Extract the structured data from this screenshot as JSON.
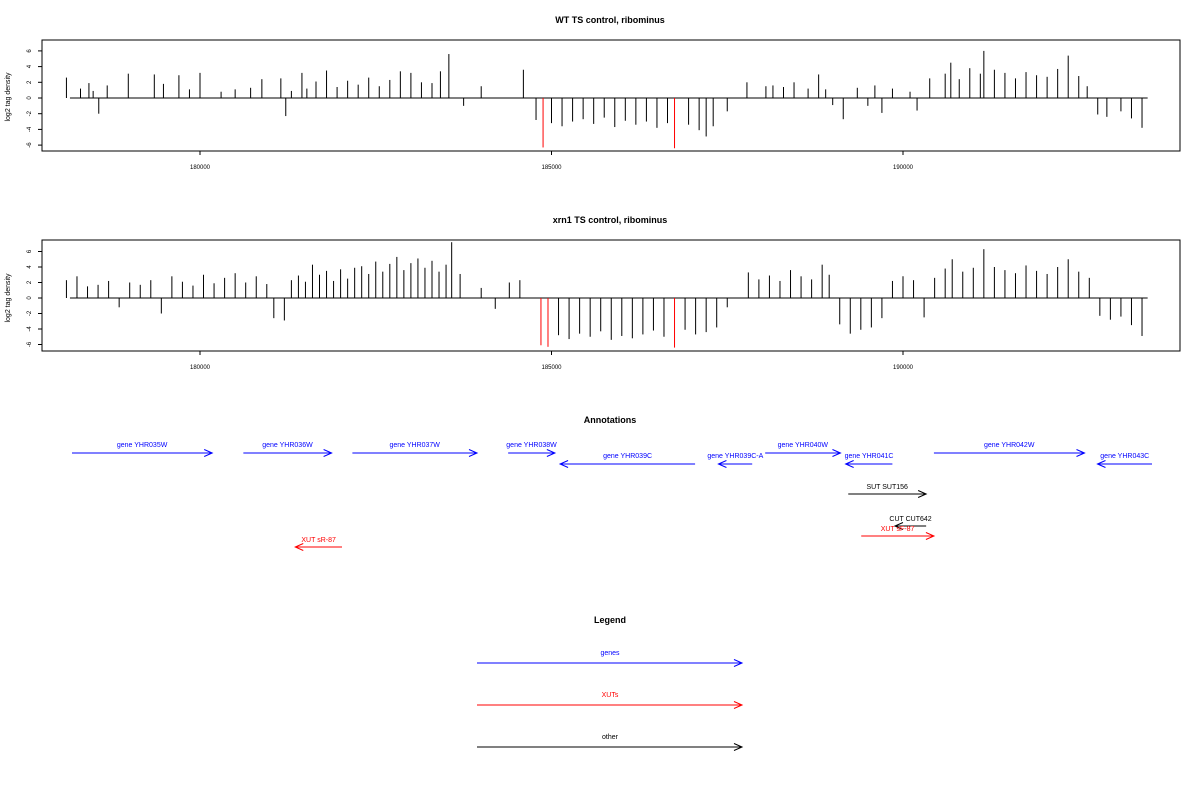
{
  "colors": {
    "genes": "#0000ff",
    "xuts": "#ff0000",
    "other": "#000000",
    "highlight": "#ff0000",
    "bars": "#000000"
  },
  "chart_data": [
    {
      "type": "bar",
      "title": "WT TS control, ribominus",
      "ylabel": "log2 tag density",
      "xlim": [
        177800,
        194000
      ],
      "ylim": [
        -6,
        6
      ],
      "xticks": [
        180000,
        185000,
        190000
      ],
      "yticks": [
        -6,
        -4,
        -2,
        0,
        2,
        4,
        6
      ],
      "grid": false,
      "bars": [
        [
          178100,
          2.6
        ],
        [
          178300,
          1.2
        ],
        [
          178420,
          1.9
        ],
        [
          178480,
          0.9
        ],
        [
          178560,
          -2.0
        ],
        [
          178680,
          1.6
        ],
        [
          178980,
          3.1
        ],
        [
          179350,
          3.0
        ],
        [
          179480,
          1.8
        ],
        [
          179700,
          2.9
        ],
        [
          179850,
          1.1
        ],
        [
          180000,
          3.2
        ],
        [
          180300,
          0.8
        ],
        [
          180500,
          1.1
        ],
        [
          180720,
          1.3
        ],
        [
          180880,
          2.4
        ],
        [
          181150,
          2.5
        ],
        [
          181220,
          -2.3
        ],
        [
          181300,
          0.9
        ],
        [
          181450,
          3.2
        ],
        [
          181520,
          1.2
        ],
        [
          181650,
          2.1
        ],
        [
          181800,
          3.5
        ],
        [
          181950,
          1.4
        ],
        [
          182100,
          2.2
        ],
        [
          182250,
          1.7
        ],
        [
          182400,
          2.6
        ],
        [
          182550,
          1.5
        ],
        [
          182700,
          2.3
        ],
        [
          182850,
          3.4
        ],
        [
          183000,
          3.2
        ],
        [
          183150,
          2.0
        ],
        [
          183300,
          1.9
        ],
        [
          183420,
          3.4
        ],
        [
          183540,
          5.6
        ],
        [
          183750,
          -1.0
        ],
        [
          184000,
          1.5
        ],
        [
          184600,
          3.6
        ],
        [
          184780,
          -2.8
        ],
        [
          184880,
          -6.3
        ],
        [
          185000,
          -3.2
        ],
        [
          185150,
          -3.6
        ],
        [
          185300,
          -3.0
        ],
        [
          185450,
          -2.7
        ],
        [
          185600,
          -3.3
        ],
        [
          185750,
          -2.5
        ],
        [
          185900,
          -3.7
        ],
        [
          186050,
          -2.9
        ],
        [
          186200,
          -3.4
        ],
        [
          186350,
          -3.0
        ],
        [
          186500,
          -3.8
        ],
        [
          186650,
          -3.2
        ],
        [
          186750,
          -6.4
        ],
        [
          186950,
          -3.4
        ],
        [
          187100,
          -4.1
        ],
        [
          187200,
          -4.9
        ],
        [
          187300,
          -3.6
        ],
        [
          187500,
          -1.7
        ],
        [
          187780,
          2.0
        ],
        [
          188050,
          1.5
        ],
        [
          188150,
          1.6
        ],
        [
          188300,
          1.4
        ],
        [
          188450,
          2.0
        ],
        [
          188650,
          1.2
        ],
        [
          188800,
          3.0
        ],
        [
          188900,
          1.1
        ],
        [
          189000,
          -0.9
        ],
        [
          189150,
          -2.7
        ],
        [
          189350,
          1.3
        ],
        [
          189500,
          -1.0
        ],
        [
          189600,
          1.6
        ],
        [
          189700,
          -1.9
        ],
        [
          189850,
          1.2
        ],
        [
          190100,
          0.8
        ],
        [
          190200,
          -1.6
        ],
        [
          190380,
          2.5
        ],
        [
          190600,
          3.1
        ],
        [
          190680,
          4.5
        ],
        [
          190800,
          2.4
        ],
        [
          190950,
          3.8
        ],
        [
          191100,
          3.1
        ],
        [
          191150,
          6.0
        ],
        [
          191300,
          3.6
        ],
        [
          191450,
          3.2
        ],
        [
          191600,
          2.5
        ],
        [
          191750,
          3.3
        ],
        [
          191900,
          2.9
        ],
        [
          192050,
          2.7
        ],
        [
          192200,
          3.7
        ],
        [
          192350,
          5.4
        ],
        [
          192500,
          2.8
        ],
        [
          192620,
          1.5
        ],
        [
          192770,
          -2.1
        ],
        [
          192900,
          -2.4
        ],
        [
          193100,
          -1.7
        ],
        [
          193250,
          -2.6
        ],
        [
          193400,
          -3.8
        ]
      ],
      "highlighted_bars": [
        [
          184880,
          -6.3
        ],
        [
          186750,
          -6.4
        ]
      ]
    },
    {
      "type": "bar",
      "title": "xrn1 TS control, ribominus",
      "ylabel": "log2 tag density",
      "xlim": [
        177800,
        194000
      ],
      "ylim": [
        -6,
        6
      ],
      "xticks": [
        180000,
        185000,
        190000
      ],
      "yticks": [
        -6,
        -4,
        -2,
        0,
        2,
        4,
        6
      ],
      "grid": false,
      "bars": [
        [
          178100,
          2.3
        ],
        [
          178250,
          2.8
        ],
        [
          178400,
          1.5
        ],
        [
          178550,
          1.7
        ],
        [
          178700,
          2.2
        ],
        [
          178850,
          -1.2
        ],
        [
          179000,
          2.0
        ],
        [
          179150,
          1.7
        ],
        [
          179300,
          2.3
        ],
        [
          179450,
          -2.0
        ],
        [
          179600,
          2.8
        ],
        [
          179750,
          2.1
        ],
        [
          179900,
          1.6
        ],
        [
          180050,
          3.0
        ],
        [
          180200,
          1.9
        ],
        [
          180350,
          2.6
        ],
        [
          180500,
          3.2
        ],
        [
          180650,
          2.0
        ],
        [
          180800,
          2.8
        ],
        [
          180950,
          1.8
        ],
        [
          181050,
          -2.6
        ],
        [
          181200,
          -2.9
        ],
        [
          181300,
          2.3
        ],
        [
          181400,
          2.9
        ],
        [
          181500,
          2.1
        ],
        [
          181600,
          4.3
        ],
        [
          181700,
          3.0
        ],
        [
          181800,
          3.5
        ],
        [
          181900,
          2.2
        ],
        [
          182000,
          3.7
        ],
        [
          182100,
          2.5
        ],
        [
          182200,
          3.9
        ],
        [
          182300,
          4.1
        ],
        [
          182400,
          3.1
        ],
        [
          182500,
          4.7
        ],
        [
          182600,
          3.4
        ],
        [
          182700,
          4.4
        ],
        [
          182800,
          5.3
        ],
        [
          182900,
          3.6
        ],
        [
          183000,
          4.5
        ],
        [
          183100,
          5.1
        ],
        [
          183200,
          3.9
        ],
        [
          183300,
          4.8
        ],
        [
          183400,
          3.4
        ],
        [
          183500,
          4.3
        ],
        [
          183580,
          7.2
        ],
        [
          183700,
          3.1
        ],
        [
          184000,
          1.3
        ],
        [
          184200,
          -1.4
        ],
        [
          184400,
          2.0
        ],
        [
          184550,
          2.3
        ],
        [
          184850,
          -6.1
        ],
        [
          184950,
          -6.3
        ],
        [
          185100,
          -4.8
        ],
        [
          185250,
          -5.3
        ],
        [
          185400,
          -4.6
        ],
        [
          185550,
          -5.0
        ],
        [
          185700,
          -4.3
        ],
        [
          185850,
          -5.4
        ],
        [
          186000,
          -4.9
        ],
        [
          186150,
          -5.2
        ],
        [
          186300,
          -4.7
        ],
        [
          186450,
          -4.2
        ],
        [
          186600,
          -5.0
        ],
        [
          186750,
          -6.4
        ],
        [
          186900,
          -4.1
        ],
        [
          187050,
          -4.7
        ],
        [
          187200,
          -4.4
        ],
        [
          187350,
          -3.8
        ],
        [
          187500,
          -1.2
        ],
        [
          187800,
          3.3
        ],
        [
          187950,
          2.4
        ],
        [
          188100,
          2.9
        ],
        [
          188250,
          2.2
        ],
        [
          188400,
          3.6
        ],
        [
          188550,
          2.8
        ],
        [
          188700,
          2.4
        ],
        [
          188850,
          4.3
        ],
        [
          188950,
          3.0
        ],
        [
          189100,
          -3.4
        ],
        [
          189250,
          -4.6
        ],
        [
          189400,
          -4.1
        ],
        [
          189550,
          -3.8
        ],
        [
          189700,
          -2.6
        ],
        [
          189850,
          2.2
        ],
        [
          190000,
          2.8
        ],
        [
          190150,
          2.3
        ],
        [
          190300,
          -2.5
        ],
        [
          190450,
          2.6
        ],
        [
          190600,
          3.8
        ],
        [
          190700,
          5.0
        ],
        [
          190850,
          3.4
        ],
        [
          191000,
          3.9
        ],
        [
          191150,
          6.3
        ],
        [
          191300,
          4.0
        ],
        [
          191450,
          3.6
        ],
        [
          191600,
          3.2
        ],
        [
          191750,
          4.2
        ],
        [
          191900,
          3.5
        ],
        [
          192050,
          3.1
        ],
        [
          192200,
          4.0
        ],
        [
          192350,
          5.0
        ],
        [
          192500,
          3.4
        ],
        [
          192650,
          2.6
        ],
        [
          192800,
          -2.3
        ],
        [
          192950,
          -2.8
        ],
        [
          193100,
          -2.4
        ],
        [
          193250,
          -3.5
        ],
        [
          193400,
          -4.9
        ]
      ],
      "highlighted_bars": [
        [
          184850,
          -6.1
        ],
        [
          184950,
          -6.3
        ],
        [
          186750,
          -6.4
        ]
      ]
    }
  ],
  "annotations": {
    "title": "Annotations",
    "features": [
      {
        "label": "gene YHR035W",
        "kind": "genes",
        "start": 177500,
        "end": 180200,
        "strand": "+",
        "row": 0
      },
      {
        "label": "gene YHR036W",
        "kind": "genes",
        "start": 180800,
        "end": 182500,
        "strand": "+",
        "row": 0
      },
      {
        "label": "gene YHR037W",
        "kind": "genes",
        "start": 182900,
        "end": 185300,
        "strand": "+",
        "row": 0
      },
      {
        "label": "gene YHR038W",
        "kind": "genes",
        "start": 185900,
        "end": 186800,
        "strand": "+",
        "row": 0
      },
      {
        "label": "gene YHR039C",
        "kind": "genes",
        "start": 186900,
        "end": 189500,
        "strand": "-",
        "row": 1
      },
      {
        "label": "gene YHR039C-A",
        "kind": "genes",
        "start": 189950,
        "end": 190600,
        "strand": "-",
        "row": 1
      },
      {
        "label": "gene YHR040W",
        "kind": "genes",
        "start": 190850,
        "end": 192300,
        "strand": "+",
        "row": 0
      },
      {
        "label": "gene YHR041C",
        "kind": "genes",
        "start": 192400,
        "end": 193300,
        "strand": "-",
        "row": 1
      },
      {
        "label": "gene YHR042W",
        "kind": "genes",
        "start": 194100,
        "end": 197000,
        "strand": "+",
        "row": 0
      },
      {
        "label": "gene YHR043C",
        "kind": "genes",
        "start": 197250,
        "end": 198300,
        "strand": "-",
        "row": 1
      },
      {
        "label": "SUT SUT156",
        "kind": "other",
        "start": 192450,
        "end": 193950,
        "strand": "+",
        "row": 2
      },
      {
        "label": "CUT CUT642",
        "kind": "other",
        "start": 193350,
        "end": 193950,
        "strand": "-",
        "row": 3
      },
      {
        "label": "XUT sF-87",
        "kind": "xuts",
        "start": 192700,
        "end": 194100,
        "strand": "+",
        "row": 4
      },
      {
        "label": "XUT sR-87",
        "kind": "xuts",
        "start": 181800,
        "end": 182700,
        "strand": "-",
        "row": 5
      }
    ]
  },
  "legend": {
    "title": "Legend",
    "entries": [
      {
        "label": "genes",
        "kind": "genes"
      },
      {
        "label": "XUTs",
        "kind": "xuts"
      },
      {
        "label": "other",
        "kind": "other"
      }
    ]
  }
}
